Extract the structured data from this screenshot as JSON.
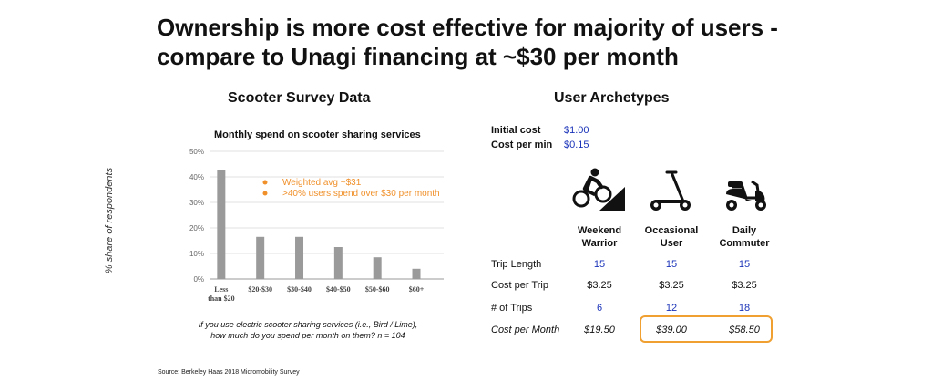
{
  "title_line1": "Ownership is more cost effective for majority of users -",
  "title_line2": "compare to Unagi financing at ~$30 per month",
  "left_heading": "Scooter Survey Data",
  "right_heading": "User Archetypes",
  "chart_data": {
    "type": "bar",
    "title": "Monthly spend on scooter sharing services",
    "ylabel": "% share of respondents",
    "xlabel": "",
    "categories": [
      "Less than $20",
      "$20-$30",
      "$30-$40",
      "$40-$50",
      "$50-$60",
      "$60+"
    ],
    "category_lines": [
      [
        "Less",
        "than $20"
      ],
      [
        "$20-$30"
      ],
      [
        "$30-$40"
      ],
      [
        "$40-$50"
      ],
      [
        "$50-$60"
      ],
      [
        "$60+"
      ]
    ],
    "values": [
      42.5,
      16.5,
      16.5,
      12.5,
      8.5,
      4
    ],
    "ylim": [
      0,
      50
    ],
    "yticks": [
      "0%",
      "10%",
      "20%",
      "30%",
      "40%",
      "50%"
    ],
    "grid": true,
    "bar_color": "#9a9a9a",
    "annotations": [
      "Weighted avg ~$31",
      ">40% users spend over $30 per month"
    ],
    "annotation_color": "#f0902a"
  },
  "caption_line1": "If you use electric scooter sharing services (i.e., Bird / Lime),",
  "caption_line2": "how much do you spend per month on them? n = 104",
  "source": "Source: Berkeley Haas 2018 Micromobility Survey",
  "pricing": {
    "initial_cost_label": "Initial cost",
    "initial_cost_value": "$1.00",
    "cost_per_min_label": "Cost per min",
    "cost_per_min_value": "$0.15"
  },
  "archetypes": [
    {
      "line1": "Weekend",
      "line2": "Warrior",
      "icon": "cyclist-icon"
    },
    {
      "line1": "Occasional",
      "line2": "User",
      "icon": "kick-scooter-icon"
    },
    {
      "line1": "Daily",
      "line2": "Commuter",
      "icon": "moped-icon"
    }
  ],
  "rows": [
    {
      "label": "Trip Length",
      "values": [
        "15",
        "15",
        "15"
      ]
    },
    {
      "label": "Cost per Trip",
      "values": [
        "$3.25",
        "$3.25",
        "$3.25"
      ]
    },
    {
      "label": "# of Trips",
      "values": [
        "6",
        "12",
        "18"
      ]
    },
    {
      "label": "Cost per Month",
      "values": [
        "$19.50",
        "$39.00",
        "$58.50"
      ]
    }
  ],
  "highlight_color": "#f0a030",
  "value_color": "#1a33b8"
}
